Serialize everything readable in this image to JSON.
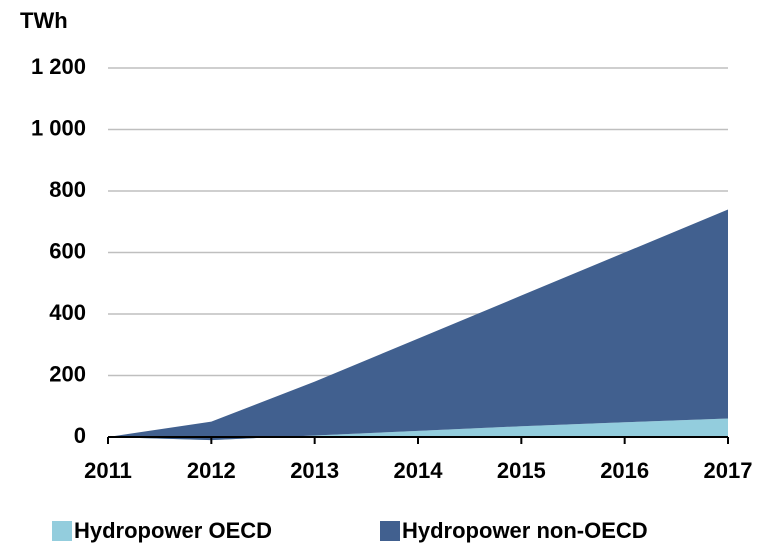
{
  "chart_data": {
    "type": "stacked-area",
    "y_axis_label": "TWh",
    "x": [
      2011,
      2012,
      2013,
      2014,
      2015,
      2016,
      2017
    ],
    "xlim": [
      2011,
      2017
    ],
    "xticks": [
      2011,
      2012,
      2013,
      2014,
      2015,
      2016,
      2017
    ],
    "series": [
      {
        "name": "Hydropower OECD",
        "color": "#93cddd",
        "values": [
          0,
          -10,
          5,
          20,
          35,
          48,
          60
        ]
      },
      {
        "name": "Hydropower non-OECD",
        "color": "#41608f",
        "values": [
          0,
          60,
          175,
          300,
          425,
          552,
          680
        ]
      }
    ],
    "ylim": [
      0,
      1200
    ],
    "yticks": [
      0,
      200,
      400,
      600,
      800,
      {
        "value": 1000,
        "label": "1 000"
      },
      {
        "value": 1200,
        "label": "1 200"
      }
    ],
    "grid": true,
    "legend": "bottom"
  }
}
